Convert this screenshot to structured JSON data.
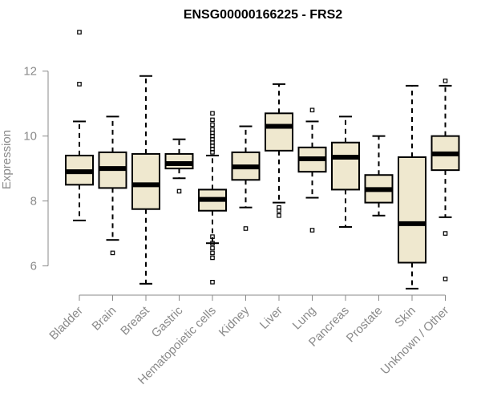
{
  "chart_data": {
    "type": "box",
    "title": "ENSG00000166225 - FRS2",
    "ylabel": "Expression",
    "ylim": [
      5.05,
      13.45
    ],
    "yticks": [
      6,
      8,
      10,
      12
    ],
    "colors": {
      "box_fill": "#efe8cf",
      "stroke": "#000000",
      "axis": "#8a8a8a"
    },
    "categories": [
      "Bladder",
      "Brain",
      "Breast",
      "Gastric",
      "Hematopoietic cells",
      "Kidney",
      "Liver",
      "Lung",
      "Pancreas",
      "Prostate",
      "Skin",
      "Unknown / Other"
    ],
    "boxes": [
      {
        "category": "Bladder",
        "whislo": 7.4,
        "q1": 8.5,
        "med": 8.9,
        "q3": 9.4,
        "whishi": 10.45,
        "fliers": [
          11.6,
          13.2
        ]
      },
      {
        "category": "Brain",
        "whislo": 6.8,
        "q1": 8.4,
        "med": 9.0,
        "q3": 9.5,
        "whishi": 10.6,
        "fliers": [
          6.4
        ]
      },
      {
        "category": "Breast",
        "whislo": 5.45,
        "q1": 7.75,
        "med": 8.5,
        "q3": 9.45,
        "whishi": 11.85,
        "fliers": []
      },
      {
        "category": "Gastric",
        "whislo": 8.7,
        "q1": 9.0,
        "med": 9.15,
        "q3": 9.45,
        "whishi": 9.9,
        "fliers": [
          8.3
        ]
      },
      {
        "category": "Hematopoietic cells",
        "whislo": 6.7,
        "q1": 7.7,
        "med": 8.05,
        "q3": 8.35,
        "whishi": 9.4,
        "fliers": [
          5.5,
          6.25,
          6.4,
          6.55,
          6.7,
          6.9,
          9.5,
          9.6,
          9.7,
          9.8,
          9.9,
          10.0,
          10.1,
          10.2,
          10.35,
          10.5,
          10.7
        ]
      },
      {
        "category": "Kidney",
        "whislo": 7.8,
        "q1": 8.65,
        "med": 9.05,
        "q3": 9.5,
        "whishi": 10.3,
        "fliers": [
          7.15
        ]
      },
      {
        "category": "Liver",
        "whislo": 7.95,
        "q1": 9.55,
        "med": 10.3,
        "q3": 10.7,
        "whishi": 11.6,
        "fliers": [
          7.55,
          7.7,
          7.8
        ]
      },
      {
        "category": "Lung",
        "whislo": 8.1,
        "q1": 8.9,
        "med": 9.3,
        "q3": 9.65,
        "whishi": 10.45,
        "fliers": [
          7.1,
          10.8
        ]
      },
      {
        "category": "Pancreas",
        "whislo": 7.2,
        "q1": 8.35,
        "med": 9.35,
        "q3": 9.8,
        "whishi": 10.6,
        "fliers": []
      },
      {
        "category": "Prostate",
        "whislo": 7.55,
        "q1": 7.95,
        "med": 8.35,
        "q3": 8.8,
        "whishi": 10.0,
        "fliers": []
      },
      {
        "category": "Skin",
        "whislo": 5.3,
        "q1": 6.1,
        "med": 7.3,
        "q3": 9.35,
        "whishi": 11.55,
        "fliers": []
      },
      {
        "category": "Unknown / Other",
        "whislo": 7.5,
        "q1": 8.95,
        "med": 9.45,
        "q3": 10.0,
        "whishi": 11.55,
        "fliers": [
          5.6,
          7.0,
          11.7
        ]
      }
    ]
  }
}
